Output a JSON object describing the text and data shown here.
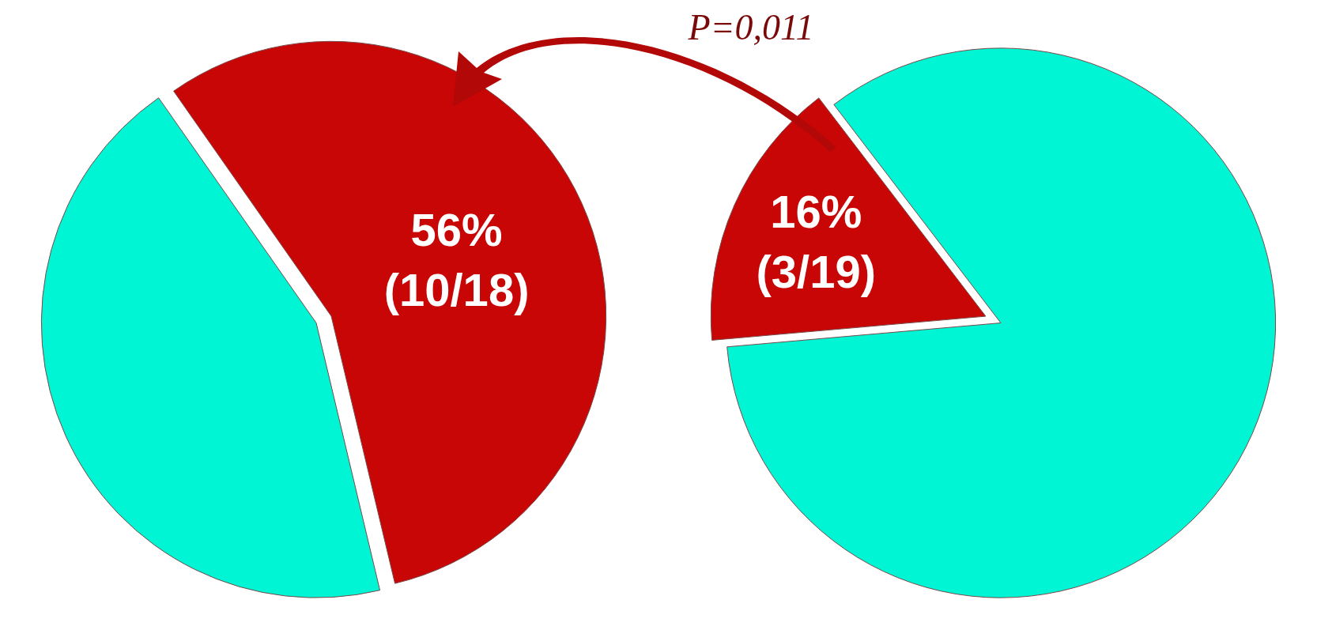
{
  "chart_data": [
    {
      "type": "pie",
      "categories": [
        null,
        null
      ],
      "values": [
        56,
        44
      ],
      "colors": [
        "#c80606",
        "#00f5d4"
      ],
      "value_labels": [
        "56%\n(10/18)",
        null
      ],
      "legend": false
    },
    {
      "type": "pie",
      "categories": [
        null,
        null
      ],
      "values": [
        16,
        84
      ],
      "colors": [
        "#c80606",
        "#00f5d4"
      ],
      "value_labels": [
        "16%\n(3/19)",
        null
      ],
      "legend": false,
      "annotations": [
        "P=0,011"
      ]
    }
  ]
}
